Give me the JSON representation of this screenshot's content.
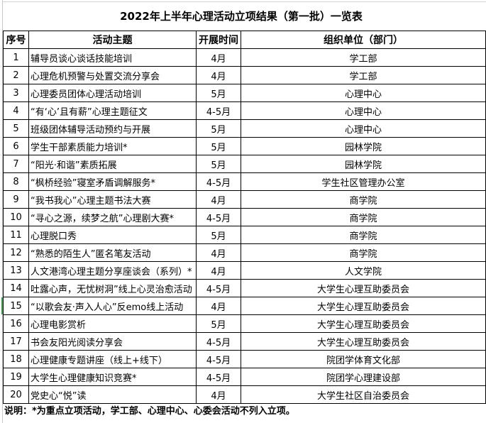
{
  "title": "2022年上半年心理活动立项结果（第一批）一览表",
  "headers": [
    "序号",
    "活动主题",
    "开展时间",
    "组织单位（部门）"
  ],
  "rows": [
    [
      "1",
      "辅导员谈心谈话技能培训",
      "4月",
      "学工部"
    ],
    [
      "2",
      "心理危机预警与处置交流分享会",
      "4月",
      "学工部"
    ],
    [
      "3",
      "心理委员团体心理活动培训",
      "5月",
      "心理中心"
    ],
    [
      "4",
      "“有‘心’且有薪”心理主题征文",
      "4-5月",
      "心理中心"
    ],
    [
      "5",
      "班级团体辅导活动预约与开展",
      "5月",
      "心理中心"
    ],
    [
      "6",
      "学生干部素质能力培训*",
      "5月",
      "园林学院"
    ],
    [
      "7",
      "“阳光·和谐”素质拓展",
      "5月",
      "园林学院"
    ],
    [
      "8",
      "“枫桥经验”寝室矛盾调解服务*",
      "4-5月",
      "学生社区管理办公室"
    ],
    [
      "9",
      "“我书我心”心理主题书法大赛",
      "4月",
      "商学院"
    ],
    [
      "10",
      "“寻心之源，续梦之航”心理剧大赛*",
      "4-5月",
      "商学院"
    ],
    [
      "11",
      "心理脱口秀",
      "5月",
      "商学院"
    ],
    [
      "12",
      "“熟悉的陌生人”匿名笔友活动",
      "4月",
      "商学院"
    ],
    [
      "13",
      "人文港湾心理主题分享座谈会（系列）*",
      "4月",
      "人文学院"
    ],
    [
      "14",
      "吐露心声，无忧树洞”线上心灵治愈活动",
      "4-5月",
      "大学生心理互助委员会"
    ],
    [
      "15",
      "“以歌会友·声入人心”反emo线上活动",
      "4月",
      "大学生心理互助委员会"
    ],
    [
      "16",
      "心理电影赏析",
      "5月",
      "大学生心理互助委员会"
    ],
    [
      "17",
      "书会友阳光阅读分享会",
      "4-5月",
      "大学生心理互助委员会"
    ],
    [
      "18",
      "心理健康专题讲座（线上+线下）",
      "4-5月",
      "院团学体育文化部"
    ],
    [
      "19",
      "大学生心理健康知识竞赛*",
      "4-5月",
      "院团学心理建设部"
    ],
    [
      "20",
      "党史心“悦”读",
      "4月",
      "大学生社区自治委员会"
    ]
  ],
  "note": "说明：*为重点立项活动，学工部、心理中心、心委会活动不列入立项。"
}
